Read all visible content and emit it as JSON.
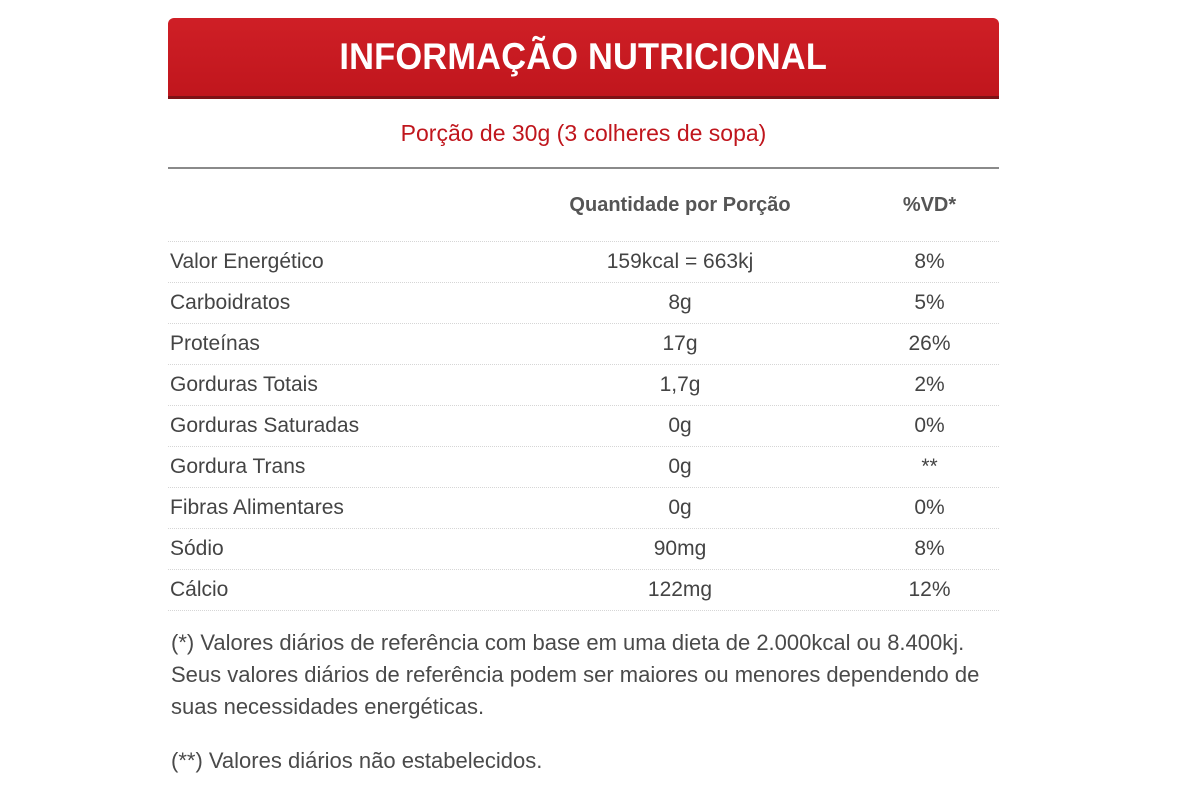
{
  "header": {
    "title": "INFORMAÇÃO NUTRICIONAL"
  },
  "portion": "Porção de 30g (3 colheres de sopa)",
  "columns": {
    "nutrient": "",
    "amount": "Quantidade por Porção",
    "dv": "%VD*"
  },
  "rows": [
    {
      "name": "Valor Energético",
      "amount": "159kcal = 663kj",
      "dv": "8%"
    },
    {
      "name": "Carboidratos",
      "amount": "8g",
      "dv": "5%"
    },
    {
      "name": "Proteínas",
      "amount": "17g",
      "dv": "26%"
    },
    {
      "name": "Gorduras Totais",
      "amount": "1,7g",
      "dv": "2%"
    },
    {
      "name": "Gorduras Saturadas",
      "amount": "0g",
      "dv": "0%"
    },
    {
      "name": "Gordura Trans",
      "amount": "0g",
      "dv": "**"
    },
    {
      "name": "Fibras Alimentares",
      "amount": "0g",
      "dv": "0%"
    },
    {
      "name": "Sódio",
      "amount": "90mg",
      "dv": "8%"
    },
    {
      "name": "Cálcio",
      "amount": "122mg",
      "dv": "12%"
    }
  ],
  "footnotes": {
    "daily_values": "(*) Valores diários de referência com base em uma dieta de 2.000kcal ou 8.400kj. Seus valores diários de referência podem ser maiores ou menores dependendo de suas necessidades energéticas.",
    "not_established": "(**) Valores diários não estabelecidos."
  },
  "colors": {
    "header_red": "#c0161d",
    "portion_text": "#c0161d"
  }
}
